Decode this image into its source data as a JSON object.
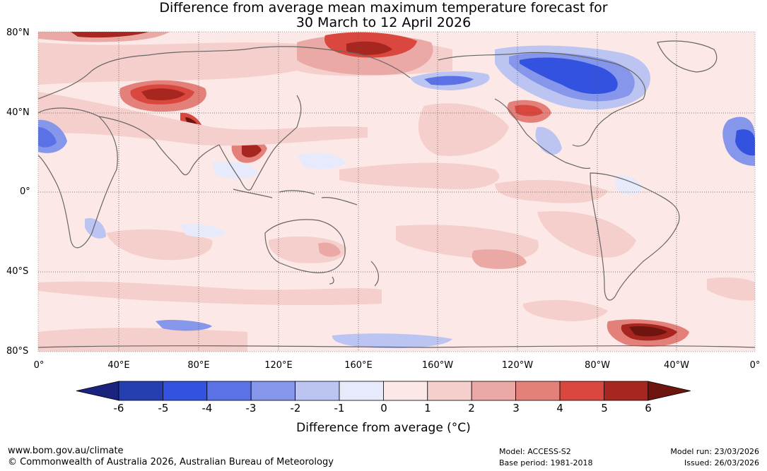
{
  "title_line1": "Difference from average mean maximum temperature forecast for",
  "title_line2": "30 March to 12 April 2026",
  "lat_labels": [
    "80°N",
    "40°N",
    "0°",
    "40°S",
    "80°S"
  ],
  "lon_labels": [
    "0°",
    "40°E",
    "80°E",
    "120°E",
    "160°E",
    "160°W",
    "120°W",
    "80°W",
    "40°W",
    "0°"
  ],
  "colorbar": {
    "ticks": [
      "-6",
      "-5",
      "-4",
      "-3",
      "-2",
      "-1",
      "0",
      "1",
      "2",
      "3",
      "4",
      "5",
      "6"
    ],
    "colors": [
      "#1a237e",
      "#263fb0",
      "#3352e0",
      "#5a72e6",
      "#8696ea",
      "#bcc5f2",
      "#e6eafb",
      "#fce9e7",
      "#f5cfcc",
      "#eaa9a5",
      "#e3807a",
      "#d9473f",
      "#a82620",
      "#6e1510"
    ],
    "label": "Difference from average (°C)"
  },
  "footer": {
    "website": "www.bom.gov.au/climate",
    "copyright": "© Commonwealth of Australia 2026, Australian Bureau of Meteorology",
    "model": "Model: ACCESS-S2",
    "base_period": "Base period: 1981-2018",
    "model_run": "Model run: 23/03/2026",
    "issued": "Issued: 26/03/2026"
  }
}
